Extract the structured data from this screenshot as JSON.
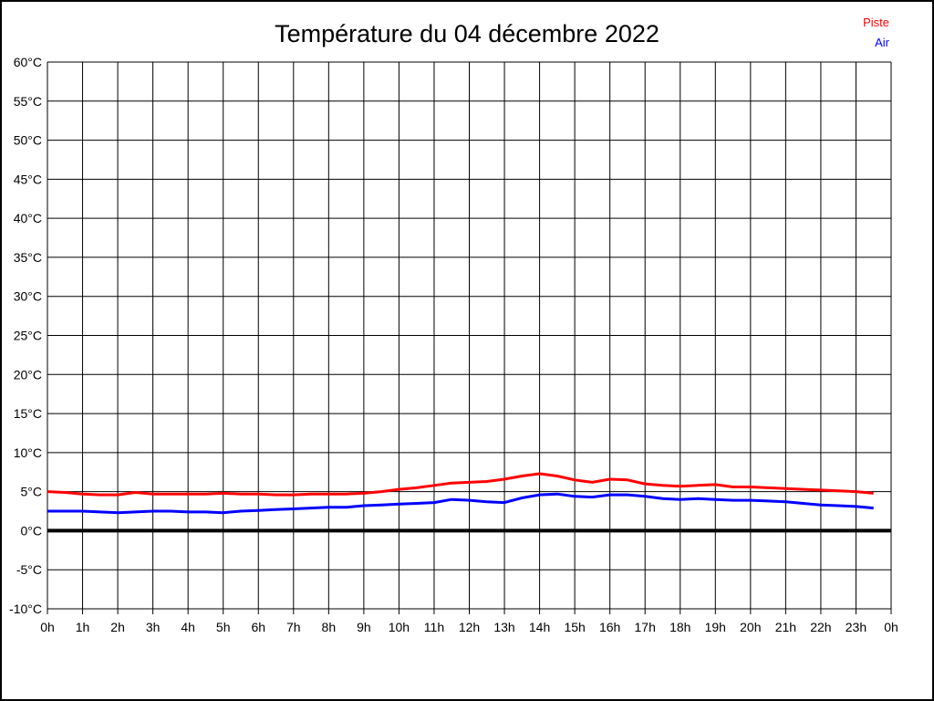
{
  "title": "Température du 04 décembre 2022",
  "legend": [
    {
      "label": "Piste",
      "color": "#ff0000"
    },
    {
      "label": "Air",
      "color": "#0000ff"
    }
  ],
  "colors": {
    "grid": "#000000",
    "zero_line": "#000000",
    "background": "#ffffff",
    "text": "#000000"
  },
  "chart_data": {
    "type": "line",
    "title": "Température du 04 décembre 2022",
    "xlabel": "",
    "ylabel": "",
    "xlim": [
      0,
      24
    ],
    "ylim": [
      -10,
      60
    ],
    "y_step": 5,
    "grid": true,
    "zero_line_bold": true,
    "legend_position": "top-right",
    "x_tick_labels": [
      "0h",
      "1h",
      "2h",
      "3h",
      "4h",
      "5h",
      "6h",
      "7h",
      "8h",
      "9h",
      "10h",
      "11h",
      "12h",
      "13h",
      "14h",
      "15h",
      "16h",
      "17h",
      "18h",
      "19h",
      "20h",
      "21h",
      "22h",
      "23h",
      "0h"
    ],
    "y_tick_labels": [
      "60°C",
      "55°C",
      "50°C",
      "45°C",
      "40°C",
      "35°C",
      "30°C",
      "25°C",
      "20°C",
      "15°C",
      "10°C",
      "5°C",
      "0°C",
      "-5°C",
      "-10°C"
    ],
    "x": [
      0,
      0.5,
      1,
      1.5,
      2,
      2.5,
      3,
      3.5,
      4,
      4.5,
      5,
      5.5,
      6,
      6.5,
      7,
      7.5,
      8,
      8.5,
      9,
      9.5,
      10,
      10.5,
      11,
      11.5,
      12,
      12.5,
      13,
      13.5,
      14,
      14.5,
      15,
      15.5,
      16,
      16.5,
      17,
      17.5,
      18,
      18.5,
      19,
      19.5,
      20,
      20.5,
      21,
      21.5,
      22,
      22.5,
      23,
      23.5
    ],
    "series": [
      {
        "name": "Piste",
        "color": "#ff0000",
        "values": [
          5.0,
          4.9,
          4.7,
          4.6,
          4.6,
          4.9,
          4.7,
          4.7,
          4.7,
          4.7,
          4.8,
          4.7,
          4.7,
          4.6,
          4.6,
          4.7,
          4.7,
          4.7,
          4.8,
          5.0,
          5.3,
          5.5,
          5.8,
          6.1,
          6.2,
          6.3,
          6.6,
          7.0,
          7.3,
          7.0,
          6.5,
          6.2,
          6.6,
          6.5,
          6.0,
          5.8,
          5.7,
          5.8,
          5.9,
          5.6,
          5.6,
          5.5,
          5.4,
          5.3,
          5.2,
          5.1,
          5.0,
          4.8
        ]
      },
      {
        "name": "Air",
        "color": "#0000ff",
        "values": [
          2.5,
          2.5,
          2.5,
          2.4,
          2.3,
          2.4,
          2.5,
          2.5,
          2.4,
          2.4,
          2.3,
          2.5,
          2.6,
          2.7,
          2.8,
          2.9,
          3.0,
          3.0,
          3.2,
          3.3,
          3.4,
          3.5,
          3.6,
          4.0,
          3.9,
          3.7,
          3.6,
          4.2,
          4.6,
          4.7,
          4.4,
          4.3,
          4.6,
          4.6,
          4.4,
          4.1,
          4.0,
          4.1,
          4.0,
          3.9,
          3.9,
          3.8,
          3.7,
          3.5,
          3.3,
          3.2,
          3.1,
          2.9
        ]
      }
    ]
  }
}
